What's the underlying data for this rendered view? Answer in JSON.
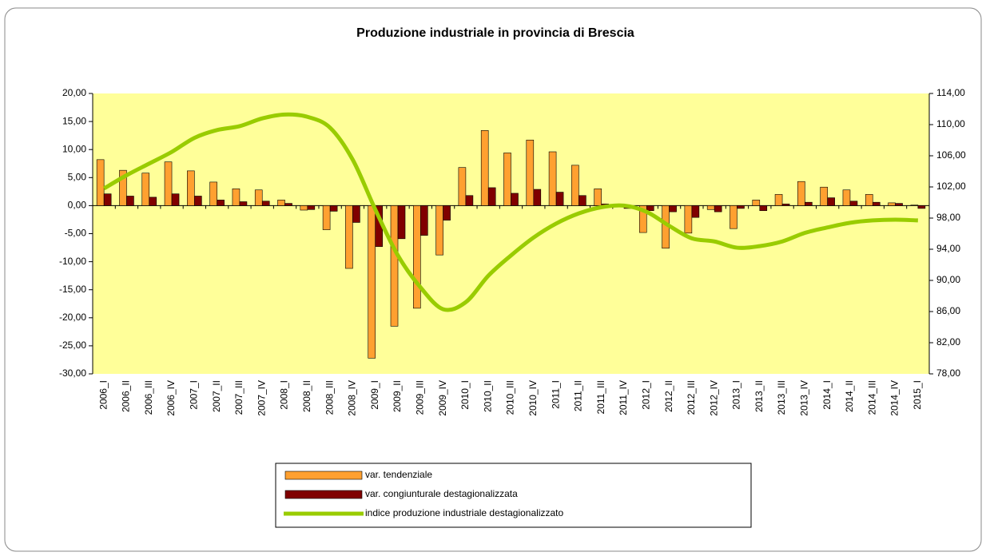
{
  "chart_data": {
    "type": "bar",
    "title": "Produzione industriale in provincia di Brescia",
    "categories": [
      "2006_I",
      "2006_II",
      "2006_III",
      "2006_IV",
      "2007_I",
      "2007_II",
      "2007_III",
      "2007_IV",
      "2008_I",
      "2008_II",
      "2008_III",
      "2008_IV",
      "2009_I",
      "2009_II",
      "2009_III",
      "2009_IV",
      "2010_I",
      "2010_II",
      "2010_III",
      "2010_IV",
      "2011_I",
      "2011_II",
      "2011_III",
      "2011_IV",
      "2012_I",
      "2012_II",
      "2012_III",
      "2012_IV",
      "2013_I",
      "2013_II",
      "2013_III",
      "2013_IV",
      "2014_I",
      "2014_II",
      "2014_III",
      "2014_IV",
      "2015_I"
    ],
    "series": [
      {
        "name": "var. tendenziale",
        "color": "#ffa030",
        "values": [
          8.2,
          6.3,
          5.8,
          7.8,
          6.2,
          4.2,
          3.0,
          2.8,
          1.0,
          -0.8,
          -4.3,
          -11.2,
          -27.2,
          -21.5,
          -18.3,
          -8.8,
          6.8,
          13.4,
          9.4,
          11.7,
          9.6,
          7.2,
          3.0,
          0.2,
          -4.8,
          -7.6,
          -4.9,
          -0.7,
          -4.1,
          1.0,
          2.0,
          4.3,
          3.3,
          2.8,
          2.0,
          0.5,
          0.1
        ]
      },
      {
        "name": "var. congiunturale destagionalizzata",
        "color": "#800000",
        "values": [
          2.1,
          1.7,
          1.5,
          2.1,
          1.7,
          1.0,
          0.7,
          0.8,
          0.4,
          -0.7,
          -1.0,
          -3.0,
          -7.3,
          -5.9,
          -5.3,
          -2.6,
          1.8,
          3.2,
          2.2,
          2.9,
          2.4,
          1.8,
          0.3,
          -0.5,
          -0.9,
          -1.1,
          -2.1,
          -1.1,
          -0.5,
          -0.9,
          0.3,
          0.6,
          1.4,
          0.8,
          0.6,
          0.4,
          -0.5
        ]
      },
      {
        "name": "indice produzione industriale destagionalizzato",
        "color": "#99cc00",
        "type": "line",
        "axis": "y2",
        "values": [
          101.8,
          103.5,
          105.0,
          106.5,
          108.3,
          109.3,
          109.8,
          110.8,
          111.3,
          111.0,
          109.6,
          105.5,
          99.1,
          93.2,
          89.1,
          86.3,
          87.2,
          90.6,
          93.2,
          95.5,
          97.3,
          98.6,
          99.4,
          99.6,
          98.8,
          97.0,
          95.4,
          95.0,
          94.2,
          94.4,
          95.0,
          96.1,
          96.8,
          97.4,
          97.7,
          97.8,
          97.7
        ]
      }
    ],
    "ylim": [
      -30,
      20
    ],
    "yticks": [
      {
        "value": -30,
        "label": "-30,00"
      },
      {
        "value": -25,
        "label": "-25,00"
      },
      {
        "value": -20,
        "label": "-20,00"
      },
      {
        "value": -15,
        "label": "-15,00"
      },
      {
        "value": -10,
        "label": "-10,00"
      },
      {
        "value": -5,
        "label": "-5,00"
      },
      {
        "value": 0,
        "label": "0,00"
      },
      {
        "value": 5,
        "label": "5,00"
      },
      {
        "value": 10,
        "label": "10,00"
      },
      {
        "value": 15,
        "label": "15,00"
      },
      {
        "value": 20,
        "label": "20,00"
      }
    ],
    "y2lim": [
      78,
      114
    ],
    "y2ticks": [
      {
        "value": 78,
        "label": "78,00"
      },
      {
        "value": 82,
        "label": "82,00"
      },
      {
        "value": 86,
        "label": "86,00"
      },
      {
        "value": 90,
        "label": "90,00"
      },
      {
        "value": 94,
        "label": "94,00"
      },
      {
        "value": 98,
        "label": "98,00"
      },
      {
        "value": 102,
        "label": "102,00"
      },
      {
        "value": 106,
        "label": "106,00"
      },
      {
        "value": 110,
        "label": "110,00"
      },
      {
        "value": 114,
        "label": "114,00"
      }
    ],
    "plot_background": "#ffff99",
    "legend": "bottom"
  }
}
